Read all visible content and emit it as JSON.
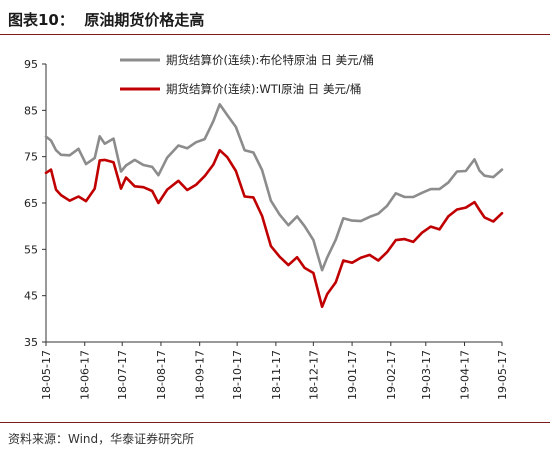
{
  "figure_title": "图表10：  原油期货价格走高",
  "source_note": "资料来源：Wind，华泰证券研究所",
  "chart_data": {
    "type": "line",
    "title": "",
    "xlabel": "",
    "ylabel": "",
    "ylim": [
      35,
      95
    ],
    "yticks": [
      35,
      45,
      55,
      65,
      75,
      85,
      95
    ],
    "xlim": [
      "2018-05-17",
      "2019-05-17"
    ],
    "xticks": [
      "18-05-17",
      "18-06-17",
      "18-07-17",
      "18-08-17",
      "18-09-17",
      "18-10-17",
      "18-11-17",
      "18-12-17",
      "19-01-17",
      "19-02-17",
      "19-03-17",
      "19-04-17",
      "19-05-17"
    ],
    "grid": false,
    "legend_position": "top-center",
    "series": [
      {
        "name": "期货结算价(连续):布伦特原油  日  美元/桶",
        "color": "#8c8c8c",
        "x": [
          "2018-05-17",
          "2018-05-21",
          "2018-05-25",
          "2018-05-29",
          "2018-06-05",
          "2018-06-12",
          "2018-06-18",
          "2018-06-25",
          "2018-06-29",
          "2018-07-03",
          "2018-07-10",
          "2018-07-16",
          "2018-07-20",
          "2018-07-27",
          "2018-08-03",
          "2018-08-10",
          "2018-08-15",
          "2018-08-22",
          "2018-08-31",
          "2018-09-07",
          "2018-09-14",
          "2018-09-21",
          "2018-09-28",
          "2018-10-03",
          "2018-10-09",
          "2018-10-16",
          "2018-10-23",
          "2018-10-30",
          "2018-11-06",
          "2018-11-13",
          "2018-11-20",
          "2018-11-27",
          "2018-12-04",
          "2018-12-10",
          "2018-12-17",
          "2018-12-24",
          "2018-12-28",
          "2019-01-04",
          "2019-01-10",
          "2019-01-17",
          "2019-01-24",
          "2019-01-31",
          "2019-02-07",
          "2019-02-14",
          "2019-02-21",
          "2019-02-28",
          "2019-03-07",
          "2019-03-14",
          "2019-03-21",
          "2019-03-28",
          "2019-04-04",
          "2019-04-11",
          "2019-04-18",
          "2019-04-25",
          "2019-04-29",
          "2019-05-03",
          "2019-05-10",
          "2019-05-17"
        ],
        "values": [
          79.3,
          78.5,
          76.4,
          75.4,
          75.3,
          76.7,
          73.4,
          74.7,
          79.4,
          77.8,
          78.9,
          71.8,
          73.1,
          74.3,
          73.2,
          72.8,
          71.0,
          74.8,
          77.4,
          76.8,
          78.1,
          78.8,
          82.7,
          86.3,
          84.0,
          81.4,
          76.4,
          75.9,
          72.1,
          65.5,
          62.5,
          60.2,
          62.1,
          60.0,
          57.0,
          50.5,
          53.2,
          57.1,
          61.7,
          61.2,
          61.1,
          62.0,
          62.7,
          64.4,
          67.1,
          66.3,
          66.3,
          67.2,
          68.0,
          68.0,
          69.4,
          71.8,
          71.9,
          74.4,
          72.0,
          70.9,
          70.6,
          72.2
        ]
      },
      {
        "name": "期货结算价(连续):WTI原油  日  美元/桶",
        "color": "#c00000",
        "x": [
          "2018-05-17",
          "2018-05-21",
          "2018-05-25",
          "2018-05-29",
          "2018-06-05",
          "2018-06-12",
          "2018-06-18",
          "2018-06-25",
          "2018-06-29",
          "2018-07-03",
          "2018-07-10",
          "2018-07-16",
          "2018-07-20",
          "2018-07-27",
          "2018-08-03",
          "2018-08-10",
          "2018-08-15",
          "2018-08-22",
          "2018-08-31",
          "2018-09-07",
          "2018-09-14",
          "2018-09-21",
          "2018-09-28",
          "2018-10-03",
          "2018-10-09",
          "2018-10-16",
          "2018-10-23",
          "2018-10-30",
          "2018-11-06",
          "2018-11-13",
          "2018-11-20",
          "2018-11-27",
          "2018-12-04",
          "2018-12-10",
          "2018-12-17",
          "2018-12-24",
          "2018-12-28",
          "2019-01-04",
          "2019-01-10",
          "2019-01-17",
          "2019-01-24",
          "2019-01-31",
          "2019-02-07",
          "2019-02-14",
          "2019-02-21",
          "2019-02-28",
          "2019-03-07",
          "2019-03-14",
          "2019-03-21",
          "2019-03-28",
          "2019-04-04",
          "2019-04-11",
          "2019-04-18",
          "2019-04-25",
          "2019-04-29",
          "2019-05-03",
          "2019-05-10",
          "2019-05-17"
        ],
        "values": [
          71.5,
          72.2,
          67.9,
          66.7,
          65.5,
          66.4,
          65.4,
          68.1,
          74.2,
          74.3,
          73.8,
          68.1,
          70.5,
          68.6,
          68.4,
          67.6,
          65.0,
          67.9,
          69.8,
          67.8,
          68.9,
          70.8,
          73.3,
          76.4,
          74.9,
          71.9,
          66.4,
          66.2,
          62.2,
          55.7,
          53.4,
          51.6,
          53.3,
          51.0,
          49.9,
          42.6,
          45.3,
          47.9,
          52.6,
          52.1,
          53.2,
          53.8,
          52.6,
          54.4,
          57.0,
          57.2,
          56.6,
          58.6,
          59.9,
          59.3,
          62.1,
          63.6,
          64.0,
          65.2,
          63.5,
          61.9,
          61.0,
          62.8
        ]
      }
    ]
  }
}
